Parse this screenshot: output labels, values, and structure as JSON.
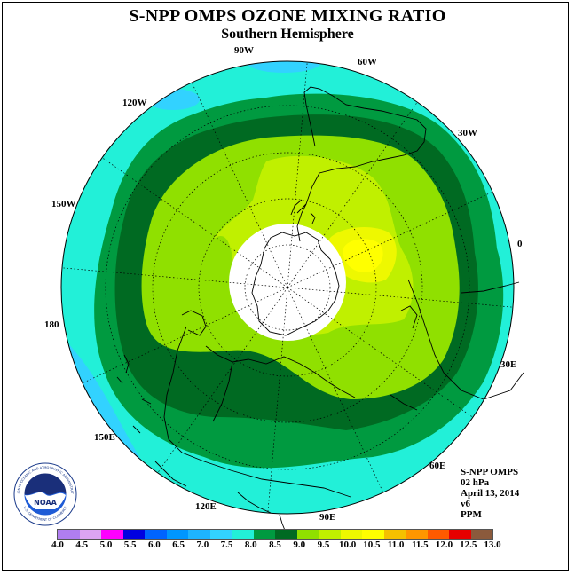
{
  "title": "S-NPP OMPS OZONE MIXING RATIO",
  "subtitle": "Southern Hemisphere",
  "longitude_labels": {
    "w90": "90W",
    "w60": "60W",
    "w30": "30W",
    "w120": "120W",
    "w150": "150W",
    "zero": "0",
    "d180": "180",
    "e30": "30E",
    "e60": "60E",
    "e90": "90E",
    "e120": "120E",
    "e150": "150E"
  },
  "info": {
    "instrument": "S-NPP OMPS",
    "level": "02 hPa",
    "date": "April 13, 2014",
    "version": "v6",
    "units": "PPM"
  },
  "logo": {
    "text": "NOAA",
    "ring_text": "NATIONAL OCEANIC AND ATMOSPHERIC ADMINISTRATION",
    "ring_bottom": "U.S. DEPARTMENT OF COMMERCE"
  },
  "colorbar": {
    "labels": [
      "4.0",
      "4.5",
      "5.0",
      "5.5",
      "6.0",
      "6.5",
      "7.0",
      "7.5",
      "8.0",
      "8.5",
      "9.0",
      "9.5",
      "10.0",
      "10.5",
      "11.0",
      "11.5",
      "12.0",
      "12.5",
      "13.0"
    ],
    "colors": [
      "#b07ef0",
      "#dca4f2",
      "#ff00ff",
      "#0000e0",
      "#0064ff",
      "#0096ff",
      "#1eb4ff",
      "#32d2ff",
      "#22f0d8",
      "#009a40",
      "#006a22",
      "#90e000",
      "#c0f000",
      "#eef800",
      "#ffff00",
      "#f5c000",
      "#ff9600",
      "#ff5a00",
      "#e60000",
      "#8b5a3c"
    ]
  },
  "map_colors": {
    "v75": "#32d2ff",
    "v80": "#22f0d8",
    "v85": "#009a40",
    "v90": "#006a22",
    "v95": "#90e000",
    "v100": "#c0f000",
    "v105": "#eef800",
    "v110": "#ffff00"
  }
}
